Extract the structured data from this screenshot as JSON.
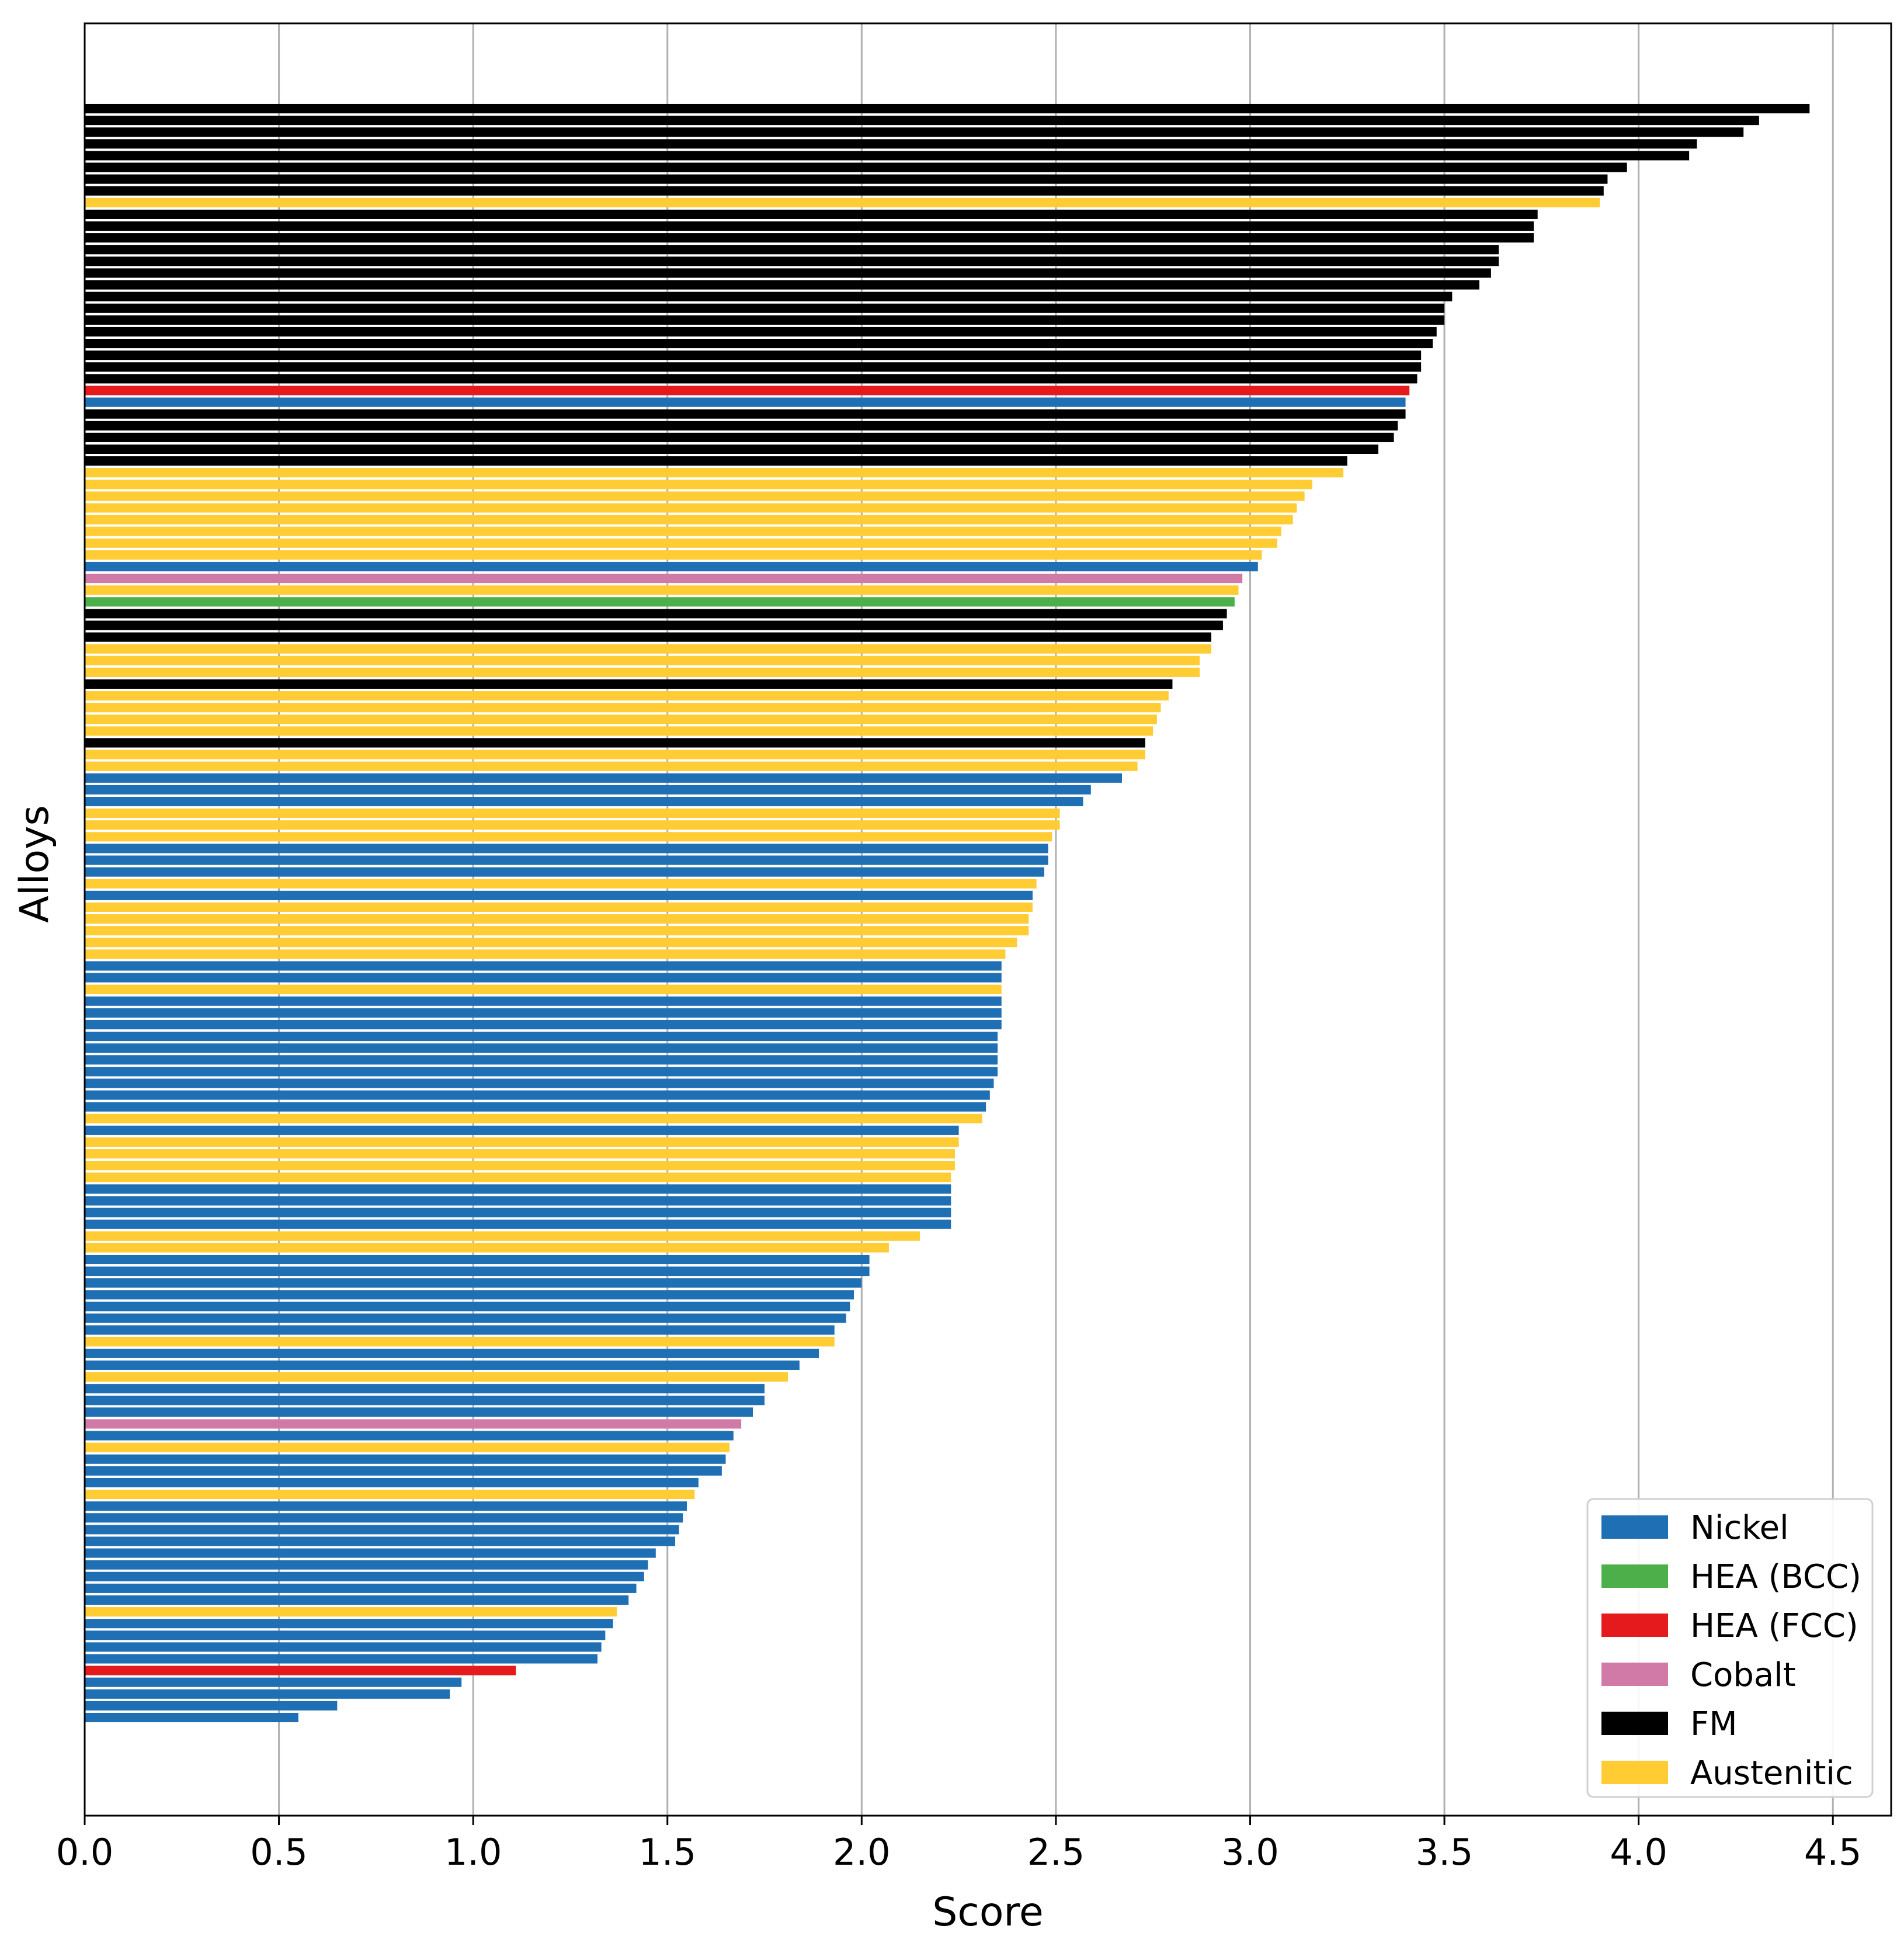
{
  "chart_data": {
    "type": "bar",
    "orientation": "horizontal",
    "title": "",
    "xlabel": "Score",
    "ylabel": "Alloys",
    "xlim": [
      0,
      4.65
    ],
    "xticks": [
      "0.0",
      "0.5",
      "1.0",
      "1.5",
      "2.0",
      "2.5",
      "3.0",
      "3.5",
      "4.0",
      "4.5"
    ],
    "grid": "vertical",
    "legend_position": "lower-right",
    "colors": {
      "Nickel": "#1f6fb4",
      "HEA (BCC)": "#4daf4a",
      "HEA (FCC)": "#e41a1c",
      "Cobalt": "#d17aa8",
      "FM": "#000000",
      "Austenitic": "#ffcc33"
    },
    "legend": [
      "Nickel",
      "HEA (BCC)",
      "HEA (FCC)",
      "Cobalt",
      "FM",
      "Austenitic"
    ],
    "bars": [
      {
        "category": "FM",
        "value": 4.44
      },
      {
        "category": "FM",
        "value": 4.31
      },
      {
        "category": "FM",
        "value": 4.27
      },
      {
        "category": "FM",
        "value": 4.15
      },
      {
        "category": "FM",
        "value": 4.13
      },
      {
        "category": "FM",
        "value": 3.97
      },
      {
        "category": "FM",
        "value": 3.92
      },
      {
        "category": "FM",
        "value": 3.91
      },
      {
        "category": "Austenitic",
        "value": 3.9
      },
      {
        "category": "FM",
        "value": 3.74
      },
      {
        "category": "FM",
        "value": 3.73
      },
      {
        "category": "FM",
        "value": 3.73
      },
      {
        "category": "FM",
        "value": 3.64
      },
      {
        "category": "FM",
        "value": 3.64
      },
      {
        "category": "FM",
        "value": 3.62
      },
      {
        "category": "FM",
        "value": 3.59
      },
      {
        "category": "FM",
        "value": 3.52
      },
      {
        "category": "FM",
        "value": 3.5
      },
      {
        "category": "FM",
        "value": 3.5
      },
      {
        "category": "FM",
        "value": 3.48
      },
      {
        "category": "FM",
        "value": 3.47
      },
      {
        "category": "FM",
        "value": 3.44
      },
      {
        "category": "FM",
        "value": 3.44
      },
      {
        "category": "FM",
        "value": 3.43
      },
      {
        "category": "HEA (FCC)",
        "value": 3.41
      },
      {
        "category": "Nickel",
        "value": 3.4
      },
      {
        "category": "FM",
        "value": 3.4
      },
      {
        "category": "FM",
        "value": 3.38
      },
      {
        "category": "FM",
        "value": 3.37
      },
      {
        "category": "FM",
        "value": 3.33
      },
      {
        "category": "FM",
        "value": 3.25
      },
      {
        "category": "Austenitic",
        "value": 3.24
      },
      {
        "category": "Austenitic",
        "value": 3.16
      },
      {
        "category": "Austenitic",
        "value": 3.14
      },
      {
        "category": "Austenitic",
        "value": 3.12
      },
      {
        "category": "Austenitic",
        "value": 3.11
      },
      {
        "category": "Austenitic",
        "value": 3.08
      },
      {
        "category": "Austenitic",
        "value": 3.07
      },
      {
        "category": "Austenitic",
        "value": 3.03
      },
      {
        "category": "Nickel",
        "value": 3.02
      },
      {
        "category": "Cobalt",
        "value": 2.98
      },
      {
        "category": "Austenitic",
        "value": 2.97
      },
      {
        "category": "HEA (BCC)",
        "value": 2.96
      },
      {
        "category": "FM",
        "value": 2.94
      },
      {
        "category": "FM",
        "value": 2.93
      },
      {
        "category": "FM",
        "value": 2.9
      },
      {
        "category": "Austenitic",
        "value": 2.9
      },
      {
        "category": "Austenitic",
        "value": 2.87
      },
      {
        "category": "Austenitic",
        "value": 2.87
      },
      {
        "category": "FM",
        "value": 2.8
      },
      {
        "category": "Austenitic",
        "value": 2.79
      },
      {
        "category": "Austenitic",
        "value": 2.77
      },
      {
        "category": "Austenitic",
        "value": 2.76
      },
      {
        "category": "Austenitic",
        "value": 2.75
      },
      {
        "category": "FM",
        "value": 2.73
      },
      {
        "category": "Austenitic",
        "value": 2.73
      },
      {
        "category": "Austenitic",
        "value": 2.71
      },
      {
        "category": "Nickel",
        "value": 2.67
      },
      {
        "category": "Nickel",
        "value": 2.59
      },
      {
        "category": "Nickel",
        "value": 2.57
      },
      {
        "category": "Austenitic",
        "value": 2.51
      },
      {
        "category": "Austenitic",
        "value": 2.51
      },
      {
        "category": "Austenitic",
        "value": 2.49
      },
      {
        "category": "Nickel",
        "value": 2.48
      },
      {
        "category": "Nickel",
        "value": 2.48
      },
      {
        "category": "Nickel",
        "value": 2.47
      },
      {
        "category": "Austenitic",
        "value": 2.45
      },
      {
        "category": "Nickel",
        "value": 2.44
      },
      {
        "category": "Austenitic",
        "value": 2.44
      },
      {
        "category": "Austenitic",
        "value": 2.43
      },
      {
        "category": "Austenitic",
        "value": 2.43
      },
      {
        "category": "Austenitic",
        "value": 2.4
      },
      {
        "category": "Austenitic",
        "value": 2.37
      },
      {
        "category": "Nickel",
        "value": 2.36
      },
      {
        "category": "Nickel",
        "value": 2.36
      },
      {
        "category": "Austenitic",
        "value": 2.36
      },
      {
        "category": "Nickel",
        "value": 2.36
      },
      {
        "category": "Nickel",
        "value": 2.36
      },
      {
        "category": "Nickel",
        "value": 2.36
      },
      {
        "category": "Nickel",
        "value": 2.35
      },
      {
        "category": "Nickel",
        "value": 2.35
      },
      {
        "category": "Nickel",
        "value": 2.35
      },
      {
        "category": "Nickel",
        "value": 2.35
      },
      {
        "category": "Nickel",
        "value": 2.34
      },
      {
        "category": "Nickel",
        "value": 2.33
      },
      {
        "category": "Nickel",
        "value": 2.32
      },
      {
        "category": "Austenitic",
        "value": 2.31
      },
      {
        "category": "Nickel",
        "value": 2.25
      },
      {
        "category": "Austenitic",
        "value": 2.25
      },
      {
        "category": "Austenitic",
        "value": 2.24
      },
      {
        "category": "Austenitic",
        "value": 2.24
      },
      {
        "category": "Austenitic",
        "value": 2.23
      },
      {
        "category": "Nickel",
        "value": 2.23
      },
      {
        "category": "Nickel",
        "value": 2.23
      },
      {
        "category": "Nickel",
        "value": 2.23
      },
      {
        "category": "Nickel",
        "value": 2.23
      },
      {
        "category": "Austenitic",
        "value": 2.15
      },
      {
        "category": "Austenitic",
        "value": 2.07
      },
      {
        "category": "Nickel",
        "value": 2.02
      },
      {
        "category": "Nickel",
        "value": 2.02
      },
      {
        "category": "Nickel",
        "value": 2.0
      },
      {
        "category": "Nickel",
        "value": 1.98
      },
      {
        "category": "Nickel",
        "value": 1.97
      },
      {
        "category": "Nickel",
        "value": 1.96
      },
      {
        "category": "Nickel",
        "value": 1.93
      },
      {
        "category": "Austenitic",
        "value": 1.93
      },
      {
        "category": "Nickel",
        "value": 1.89
      },
      {
        "category": "Nickel",
        "value": 1.84
      },
      {
        "category": "Austenitic",
        "value": 1.81
      },
      {
        "category": "Nickel",
        "value": 1.75
      },
      {
        "category": "Nickel",
        "value": 1.75
      },
      {
        "category": "Nickel",
        "value": 1.72
      },
      {
        "category": "Cobalt",
        "value": 1.69
      },
      {
        "category": "Nickel",
        "value": 1.67
      },
      {
        "category": "Austenitic",
        "value": 1.66
      },
      {
        "category": "Nickel",
        "value": 1.65
      },
      {
        "category": "Nickel",
        "value": 1.64
      },
      {
        "category": "Nickel",
        "value": 1.58
      },
      {
        "category": "Austenitic",
        "value": 1.57
      },
      {
        "category": "Nickel",
        "value": 1.55
      },
      {
        "category": "Nickel",
        "value": 1.54
      },
      {
        "category": "Nickel",
        "value": 1.53
      },
      {
        "category": "Nickel",
        "value": 1.52
      },
      {
        "category": "Nickel",
        "value": 1.47
      },
      {
        "category": "Nickel",
        "value": 1.45
      },
      {
        "category": "Nickel",
        "value": 1.44
      },
      {
        "category": "Nickel",
        "value": 1.42
      },
      {
        "category": "Nickel",
        "value": 1.4
      },
      {
        "category": "Austenitic",
        "value": 1.37
      },
      {
        "category": "Nickel",
        "value": 1.36
      },
      {
        "category": "Nickel",
        "value": 1.34
      },
      {
        "category": "Nickel",
        "value": 1.33
      },
      {
        "category": "Nickel",
        "value": 1.32
      },
      {
        "category": "HEA (FCC)",
        "value": 1.11
      },
      {
        "category": "Nickel",
        "value": 0.97
      },
      {
        "category": "Nickel",
        "value": 0.94
      },
      {
        "category": "Nickel",
        "value": 0.65
      },
      {
        "category": "Nickel",
        "value": 0.55
      }
    ]
  }
}
